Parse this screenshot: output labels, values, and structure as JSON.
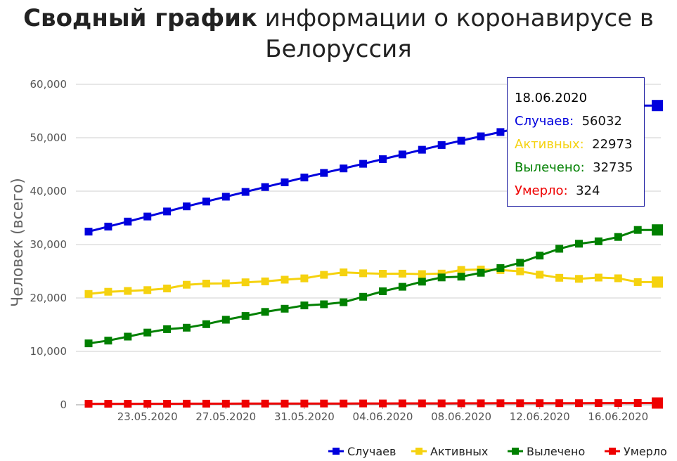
{
  "title": {
    "bold": "Сводный график",
    "rest": " информации о коронавирусе в Белоруссия"
  },
  "chart_data": {
    "type": "line",
    "title": "Сводный график информации о коронавирусе в Белоруссия",
    "ylabel": "Человек (всего)",
    "xlabel": "",
    "ylim": [
      0,
      60000
    ],
    "yticks": [
      "0",
      "10,000",
      "20,000",
      "30,000",
      "40,000",
      "50,000",
      "60,000"
    ],
    "ytick_values": [
      0,
      10000,
      20000,
      30000,
      40000,
      50000,
      60000
    ],
    "x": [
      "20.05.2020",
      "21.05.2020",
      "22.05.2020",
      "23.05.2020",
      "24.05.2020",
      "25.05.2020",
      "26.05.2020",
      "27.05.2020",
      "28.05.2020",
      "29.05.2020",
      "30.05.2020",
      "31.05.2020",
      "01.06.2020",
      "02.06.2020",
      "03.06.2020",
      "04.06.2020",
      "05.06.2020",
      "06.06.2020",
      "07.06.2020",
      "08.06.2020",
      "09.06.2020",
      "10.06.2020",
      "11.06.2020",
      "12.06.2020",
      "13.06.2020",
      "14.06.2020",
      "15.06.2020",
      "16.06.2020",
      "17.06.2020",
      "18.06.2020"
    ],
    "xtick_labels": [
      "23.05.2020",
      "27.05.2020",
      "31.05.2020",
      "04.06.2020",
      "08.06.2020",
      "12.06.2020",
      "16.06.2020"
    ],
    "series": [
      {
        "name": "Случаев",
        "color": "#0000dd",
        "values": [
          32426,
          33371,
          34303,
          35244,
          36198,
          37144,
          38059,
          38956,
          39858,
          40764,
          41658,
          42556,
          43403,
          44255,
          45116,
          45981,
          46868,
          47751,
          48630,
          49453,
          50265,
          51066,
          51816,
          52520,
          53241,
          53973,
          54680,
          55369,
          56032,
          56032
        ]
      },
      {
        "name": "Активных",
        "color": "#f5d20f",
        "values": [
          20750,
          21160,
          21320,
          21480,
          21780,
          22470,
          22700,
          22740,
          22930,
          23100,
          23420,
          23670,
          24330,
          24790,
          24620,
          24540,
          24550,
          24470,
          24570,
          25250,
          25330,
          25230,
          24990,
          24350,
          23770,
          23580,
          23810,
          23680,
          22970,
          22973
        ]
      },
      {
        "name": "Вылечено",
        "color": "#008000",
        "values": [
          11495,
          12008,
          12767,
          13531,
          14155,
          14436,
          15091,
          15923,
          16627,
          17390,
          17986,
          18611,
          18812,
          19195,
          20229,
          21256,
          22094,
          23054,
          23837,
          23985,
          24708,
          25599,
          26594,
          27932,
          29208,
          30153,
          30609,
          31421,
          32735,
          32735
        ]
      },
      {
        "name": "Умерло",
        "color": "#ee0000",
        "values": [
          182,
          185,
          190,
          194,
          199,
          204,
          208,
          214,
          219,
          224,
          229,
          235,
          240,
          243,
          248,
          254,
          260,
          265,
          269,
          272,
          279,
          285,
          291,
          297,
          303,
          308,
          315,
          320,
          324,
          324
        ]
      }
    ],
    "legend_position": "bottom-right",
    "grid": true
  },
  "tooltip": {
    "date": "18.06.2020",
    "rows": [
      {
        "label": "Случаев:",
        "value": "56032",
        "color": "#0000dd"
      },
      {
        "label": "Активных:",
        "value": "22973",
        "color": "#f5d20f"
      },
      {
        "label": "Вылечено:",
        "value": "32735",
        "color": "#008000"
      },
      {
        "label": "Умерло:",
        "value": "324",
        "color": "#ee0000"
      }
    ]
  }
}
